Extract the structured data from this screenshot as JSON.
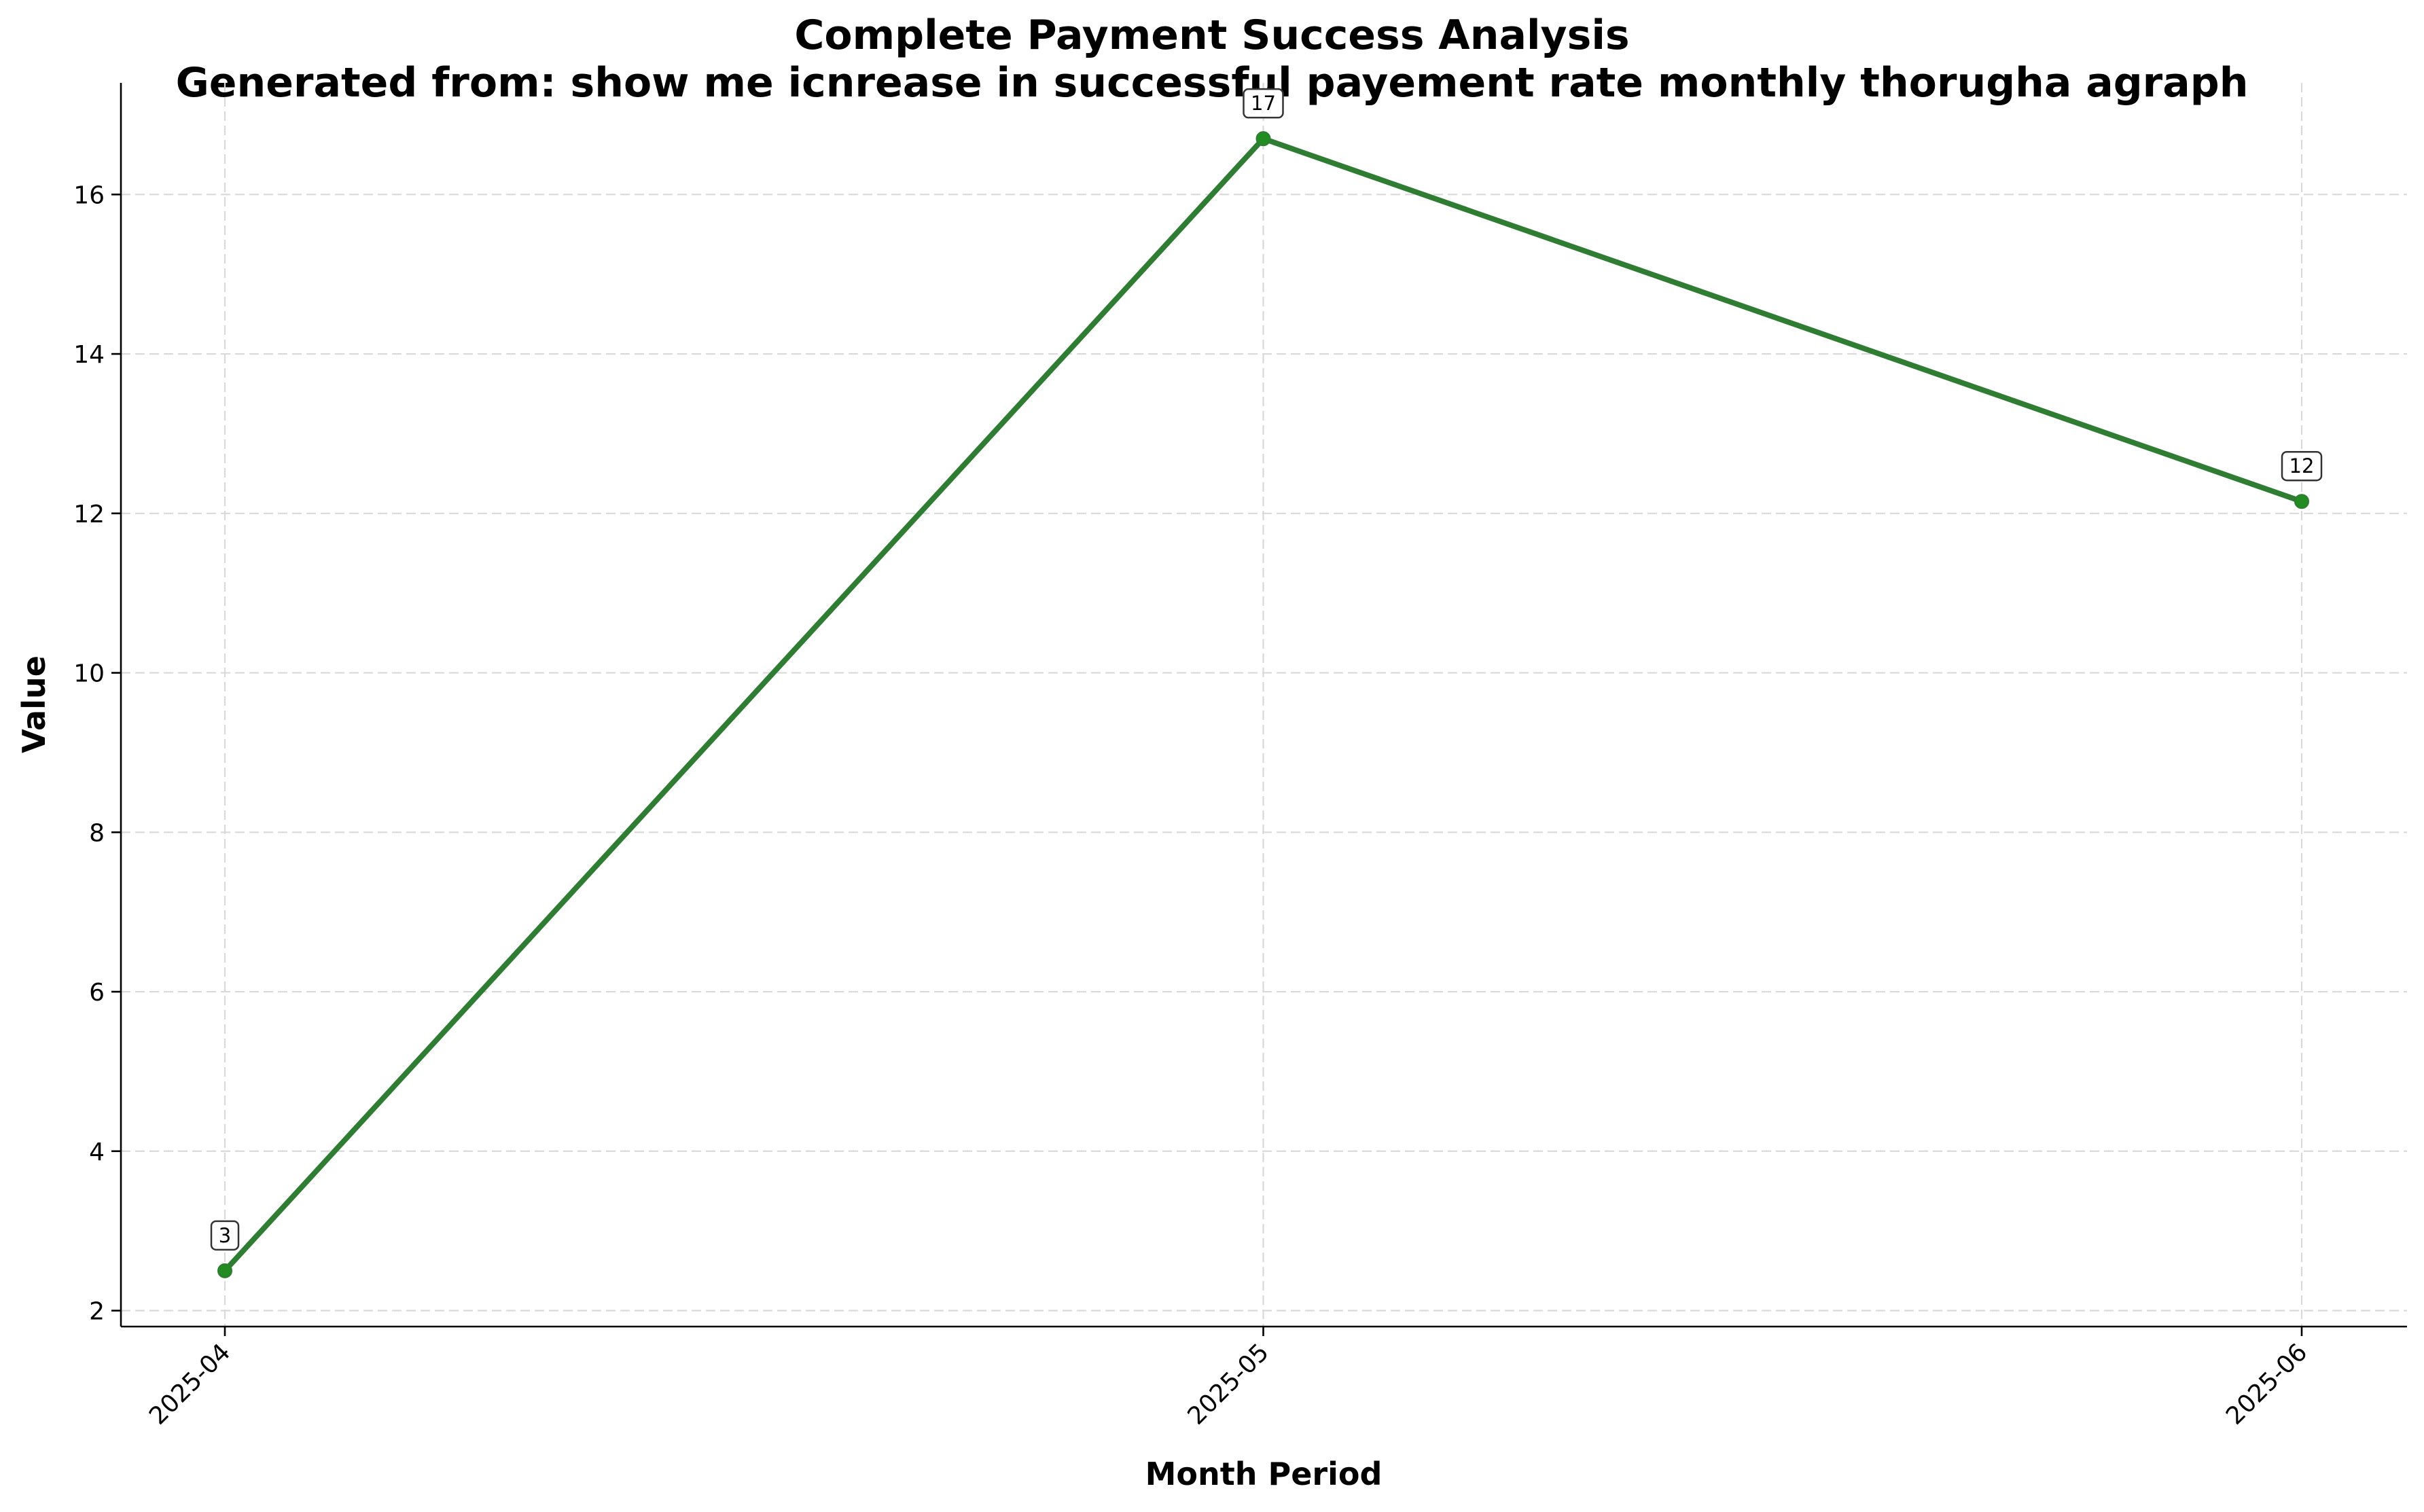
{
  "chart_data": {
    "type": "line",
    "title": "Complete Payment Success Analysis",
    "subtitle": "Generated from: show me icnrease in successful payement rate monthly thorugha  agraph",
    "xlabel": "Month Period",
    "ylabel": "Value",
    "categories": [
      "2025-04",
      "2025-05",
      "2025-06"
    ],
    "series": [
      {
        "values": [
          2.5,
          16.7,
          12.15
        ],
        "data_labels": [
          "3",
          "17",
          "12"
        ],
        "color": "#2e7d32",
        "marker_color": "#228b22"
      }
    ],
    "ylim": [
      1.8,
      17.4
    ],
    "yticks": [
      2,
      4,
      6,
      8,
      10,
      12,
      14,
      16
    ],
    "grid": true,
    "legend": "none"
  }
}
